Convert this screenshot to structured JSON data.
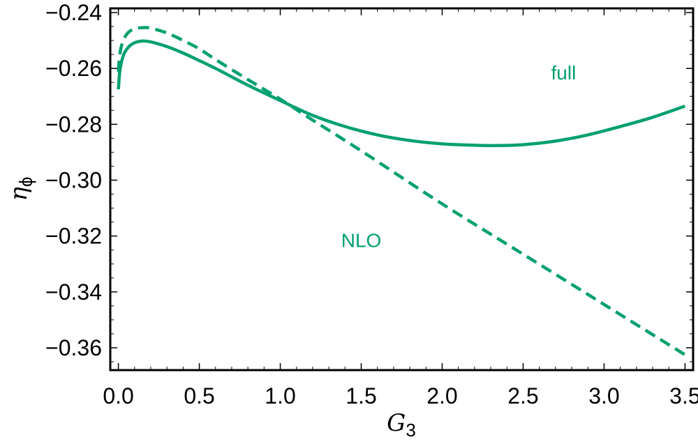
{
  "colors": {
    "series": "#00a070",
    "axis": "#000000",
    "background": "#ffffff"
  },
  "chart_data": {
    "type": "line",
    "title": "",
    "xlabel": {
      "main": "G",
      "sub": "3"
    },
    "ylabel": {
      "main": "η",
      "sub": "ϕ"
    },
    "xlim": [
      -0.05,
      3.55
    ],
    "ylim": [
      -0.368,
      -0.2385
    ],
    "x_ticks": [
      0.0,
      0.5,
      1.0,
      1.5,
      2.0,
      2.5,
      3.0,
      3.5
    ],
    "x_tick_labels": [
      "0.0",
      "0.5",
      "1.0",
      "1.5",
      "2.0",
      "2.5",
      "3.0",
      "3.5"
    ],
    "y_ticks": [
      -0.24,
      -0.26,
      -0.28,
      -0.3,
      -0.32,
      -0.34,
      -0.36
    ],
    "y_tick_labels": [
      "−0.24",
      "−0.26",
      "−0.28",
      "−0.30",
      "−0.32",
      "−0.34",
      "−0.36"
    ],
    "grid": false,
    "series": [
      {
        "name": "full",
        "style": "solid",
        "x": [
          0.0,
          0.01,
          0.03,
          0.06,
          0.1,
          0.15,
          0.2,
          0.3,
          0.4,
          0.5,
          0.6,
          0.8,
          1.0,
          1.2,
          1.4,
          1.6,
          1.8,
          2.0,
          2.2,
          2.35,
          2.5,
          2.7,
          2.9,
          3.1,
          3.3,
          3.5
        ],
        "y": [
          -0.2675,
          -0.2605,
          -0.2555,
          -0.2525,
          -0.2508,
          -0.2502,
          -0.2505,
          -0.2522,
          -0.2545,
          -0.2572,
          -0.26,
          -0.266,
          -0.2715,
          -0.2768,
          -0.2808,
          -0.2838,
          -0.2858,
          -0.287,
          -0.2875,
          -0.2876,
          -0.2873,
          -0.286,
          -0.2838,
          -0.2808,
          -0.2775,
          -0.2735
        ]
      },
      {
        "name": "NLO",
        "style": "dashed",
        "x": [
          0.0,
          0.01,
          0.03,
          0.06,
          0.1,
          0.15,
          0.2,
          0.3,
          0.4,
          0.5,
          0.6,
          0.8,
          1.0,
          1.2,
          1.5,
          2.0,
          2.5,
          3.0,
          3.5
        ],
        "y": [
          -0.2612,
          -0.2545,
          -0.25,
          -0.2472,
          -0.2458,
          -0.2454,
          -0.2456,
          -0.2473,
          -0.25,
          -0.253,
          -0.2568,
          -0.264,
          -0.271,
          -0.2785,
          -0.2895,
          -0.3085,
          -0.3265,
          -0.3445,
          -0.3625
        ]
      }
    ],
    "annotations": [
      {
        "text": "full",
        "x": 2.75,
        "y": -0.2615
      },
      {
        "text": "NLO",
        "x": 1.5,
        "y": -0.3215
      }
    ]
  }
}
